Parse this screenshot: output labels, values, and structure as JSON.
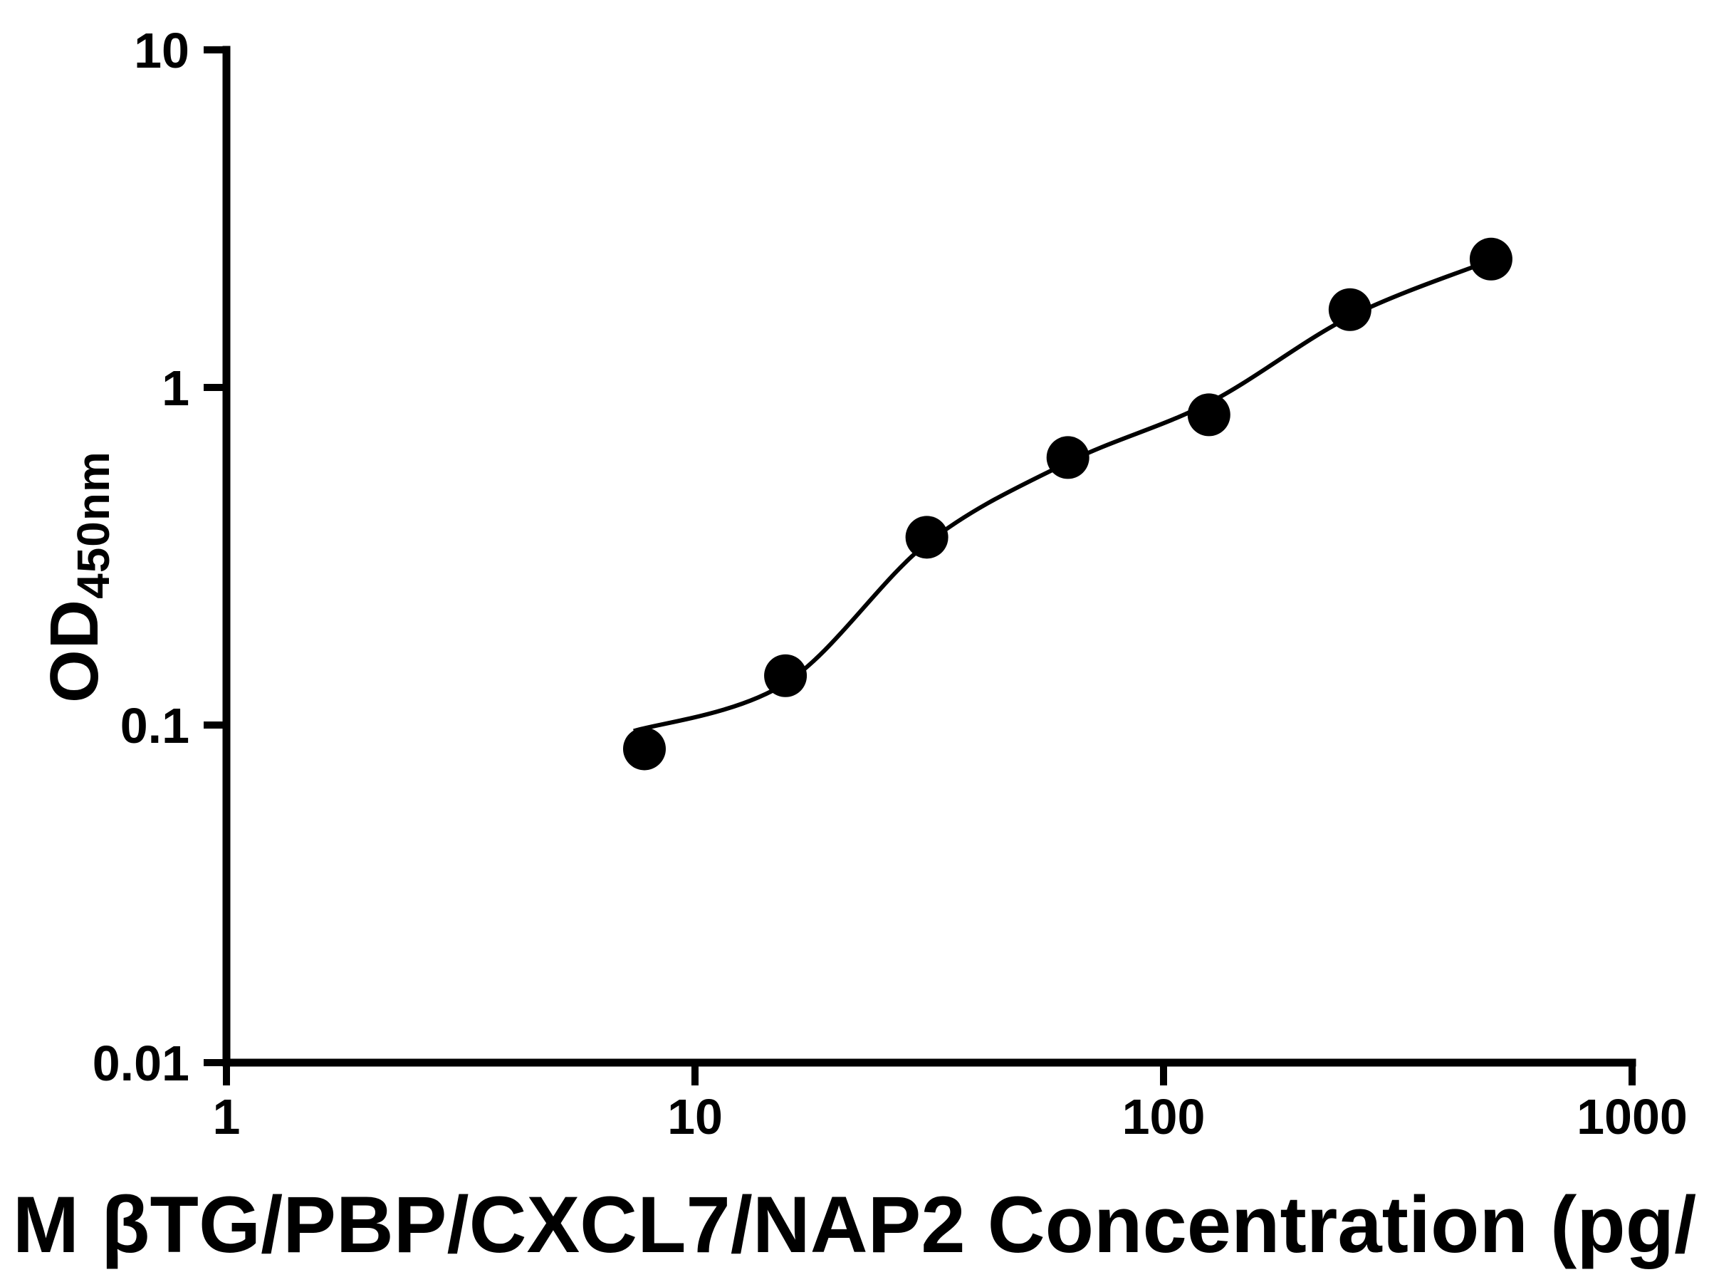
{
  "chart_data": {
    "type": "scatter",
    "title": "",
    "xlabel": "M βTG/PBP/CXCL7/NAP2 Concentration (pg/",
    "ylabel_main": "OD",
    "ylabel_sub": "450nm",
    "x_scale": "log",
    "y_scale": "log",
    "xlim": [
      1,
      1000
    ],
    "ylim": [
      0.01,
      10
    ],
    "x_tick_values": [
      1,
      10,
      100,
      1000
    ],
    "x_tick_labels": [
      "1",
      "10",
      "100",
      "1000"
    ],
    "y_tick_values": [
      0.01,
      0.1,
      1,
      10
    ],
    "y_tick_labels": [
      "0.01",
      "0.1",
      "1",
      "10"
    ],
    "grid": false,
    "legend": false,
    "background": "#ffffff",
    "axis_color": "#000000",
    "series": [
      {
        "name": "standard-curve-points",
        "marker": "circle",
        "marker_color": "#000000",
        "line_color": "#000000",
        "points": [
          {
            "x": 7.8,
            "y": 0.085
          },
          {
            "x": 15.6,
            "y": 0.14
          },
          {
            "x": 31.25,
            "y": 0.36
          },
          {
            "x": 62.5,
            "y": 0.62
          },
          {
            "x": 125,
            "y": 0.83
          },
          {
            "x": 250,
            "y": 1.7
          },
          {
            "x": 500,
            "y": 2.4
          }
        ]
      }
    ],
    "fit_curve": [
      {
        "x": 7.4,
        "y": 0.096
      },
      {
        "x": 15.6,
        "y": 0.133
      },
      {
        "x": 31.25,
        "y": 0.345
      },
      {
        "x": 62.5,
        "y": 0.6
      },
      {
        "x": 125,
        "y": 0.9
      },
      {
        "x": 250,
        "y": 1.62
      },
      {
        "x": 500,
        "y": 2.38
      }
    ]
  }
}
